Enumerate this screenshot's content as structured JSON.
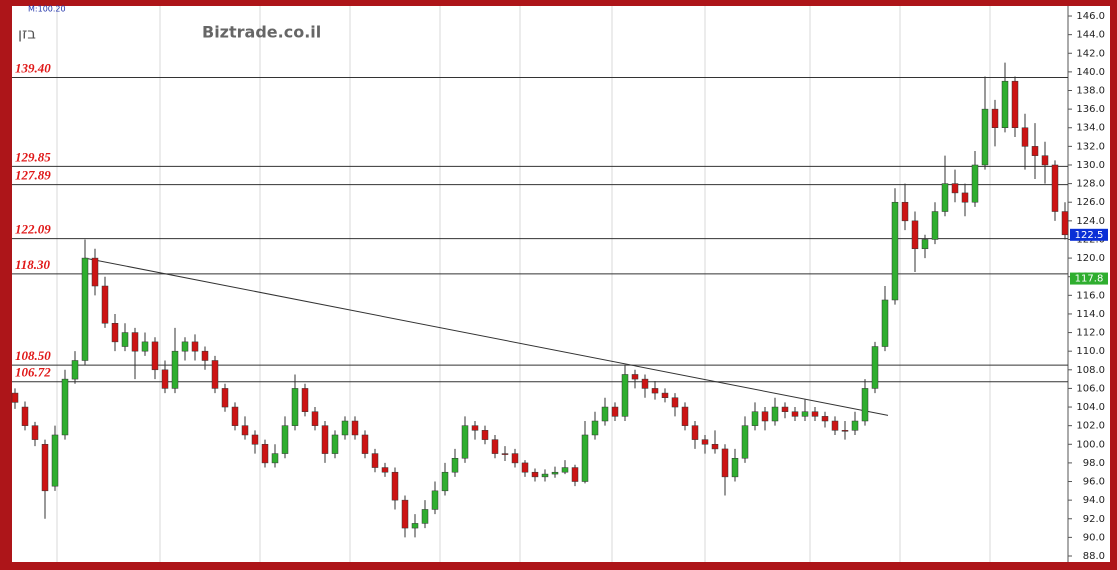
{
  "chart_data": {
    "type": "candlestick",
    "title": "Biztrade.co.il",
    "subtitle": "בזן",
    "annotation": "M:100.20",
    "colors": {
      "up": "#2fae2f",
      "down": "#cc1414"
    },
    "ylim": [
      88,
      146.4
    ],
    "yticks": [
      {
        "value": 88,
        "label": "88.0"
      },
      {
        "value": 90,
        "label": "90.0"
      },
      {
        "value": 92,
        "label": "92.0"
      },
      {
        "value": 94,
        "label": "94.0"
      },
      {
        "value": 96,
        "label": "96.0"
      },
      {
        "value": 98,
        "label": "98.0"
      },
      {
        "value": 100,
        "label": "100.0"
      },
      {
        "value": 102,
        "label": "102.0"
      },
      {
        "value": 104,
        "label": "104.0"
      },
      {
        "value": 106,
        "label": "106.0"
      },
      {
        "value": 108,
        "label": "108.0"
      },
      {
        "value": 110,
        "label": "110.0"
      },
      {
        "value": 112,
        "label": "112.0"
      },
      {
        "value": 114,
        "label": "114.0"
      },
      {
        "value": 116,
        "label": "116.0"
      },
      {
        "value": 118,
        "label": "118.0"
      },
      {
        "value": 120,
        "label": "120.0"
      },
      {
        "value": 122,
        "label": "122.0"
      },
      {
        "value": 124,
        "label": "124.0"
      },
      {
        "value": 126,
        "label": "126.0"
      },
      {
        "value": 128,
        "label": "128.0"
      },
      {
        "value": 130,
        "label": "130.0"
      },
      {
        "value": 132,
        "label": "132.0"
      },
      {
        "value": 134,
        "label": "134.0"
      },
      {
        "value": 136,
        "label": "136.0"
      },
      {
        "value": 138,
        "label": "138.0"
      },
      {
        "value": 140,
        "label": "140.0"
      },
      {
        "value": 142,
        "label": "142.0"
      },
      {
        "value": 144,
        "label": "144.0"
      },
      {
        "value": 146,
        "label": "146.0"
      }
    ],
    "levels": [
      {
        "value": 139.4,
        "label": "139.40"
      },
      {
        "value": 129.85,
        "label": "129.85"
      },
      {
        "value": 127.89,
        "label": "127.89"
      },
      {
        "value": 122.09,
        "label": "122.09"
      },
      {
        "value": 118.3,
        "label": "118.30"
      },
      {
        "value": 108.5,
        "label": "108.50"
      },
      {
        "value": 106.72,
        "label": "106.72"
      }
    ],
    "price_tags": [
      {
        "value": 122.5,
        "label": "122.5",
        "color": "#0a2fd6"
      },
      {
        "value": 117.8,
        "label": "117.8",
        "color": "#2fae2f"
      }
    ],
    "trendline": {
      "x": [
        7,
        87.3
      ],
      "y": [
        120.0,
        103.1
      ]
    },
    "ohlc": [
      [
        105.5,
        106,
        103.8,
        104.5
      ],
      [
        104,
        104.6,
        101.5,
        102
      ],
      [
        102,
        102.4,
        99.8,
        100.5
      ],
      [
        100,
        100.5,
        92,
        95
      ],
      [
        95.5,
        102,
        95,
        101
      ],
      [
        101,
        108,
        100.5,
        107
      ],
      [
        107,
        110,
        106.5,
        109
      ],
      [
        109,
        122,
        108.5,
        120
      ],
      [
        120,
        121,
        116,
        117
      ],
      [
        117,
        118,
        112.5,
        113
      ],
      [
        113,
        114,
        110,
        111
      ],
      [
        110.5,
        113,
        110,
        112
      ],
      [
        112,
        112.5,
        107,
        110
      ],
      [
        110,
        112,
        109.5,
        111
      ],
      [
        111,
        111.5,
        107,
        108
      ],
      [
        108,
        109,
        105.5,
        106
      ],
      [
        106,
        112.5,
        105.5,
        110
      ],
      [
        110,
        111.5,
        109,
        111
      ],
      [
        111,
        111.8,
        109,
        110
      ],
      [
        110,
        110.5,
        108,
        109
      ],
      [
        109,
        109.5,
        105.5,
        106
      ],
      [
        106,
        106.5,
        103.5,
        104
      ],
      [
        104,
        104.5,
        101.5,
        102
      ],
      [
        102,
        103,
        100.5,
        101
      ],
      [
        101,
        101.5,
        99,
        100
      ],
      [
        100,
        100.5,
        97.5,
        98
      ],
      [
        98,
        100,
        97.5,
        99
      ],
      [
        99,
        103,
        98.5,
        102
      ],
      [
        102,
        107.5,
        101.5,
        106
      ],
      [
        106,
        106.5,
        103,
        103.5
      ],
      [
        103.5,
        104,
        101.5,
        102
      ],
      [
        102,
        102.5,
        98,
        99
      ],
      [
        99,
        101.5,
        98.5,
        101
      ],
      [
        101,
        103,
        100.5,
        102.5
      ],
      [
        102.5,
        103,
        100.5,
        101
      ],
      [
        101,
        101.5,
        98.5,
        99
      ],
      [
        99,
        99.5,
        97,
        97.5
      ],
      [
        97.5,
        98,
        96.5,
        97
      ],
      [
        97,
        97.5,
        93,
        94
      ],
      [
        94,
        94.5,
        90,
        91
      ],
      [
        91,
        92.5,
        90,
        91.5
      ],
      [
        91.5,
        94,
        91,
        93
      ],
      [
        93,
        96,
        92.5,
        95
      ],
      [
        95,
        98,
        94.5,
        97
      ],
      [
        97,
        99.5,
        96.5,
        98.5
      ],
      [
        98.5,
        103,
        98,
        102
      ],
      [
        102,
        102.5,
        100.5,
        101.5
      ],
      [
        101.5,
        102,
        100,
        100.5
      ],
      [
        100.5,
        101,
        98.5,
        99
      ],
      [
        99,
        99.8,
        98.2,
        99
      ],
      [
        99,
        99.5,
        97.5,
        98
      ],
      [
        98,
        98.3,
        96.5,
        97
      ],
      [
        97,
        97.4,
        96,
        96.5
      ],
      [
        96.5,
        97.3,
        96,
        96.8
      ],
      [
        96.8,
        97.6,
        96.4,
        97
      ],
      [
        97,
        98.3,
        96.8,
        97.5
      ],
      [
        97.5,
        97.8,
        95.5,
        96
      ],
      [
        96,
        102.5,
        95.8,
        101
      ],
      [
        101,
        103.5,
        100.5,
        102.5
      ],
      [
        102.5,
        105,
        102,
        104
      ],
      [
        104,
        104.5,
        102.5,
        103
      ],
      [
        103,
        108.5,
        102.5,
        107.5
      ],
      [
        107.5,
        108,
        106,
        107
      ],
      [
        107,
        107.5,
        105,
        106
      ],
      [
        106,
        106.8,
        104.8,
        105.5
      ],
      [
        105.5,
        106,
        104.5,
        105
      ],
      [
        105,
        105.5,
        103,
        104
      ],
      [
        104,
        104.5,
        101.5,
        102
      ],
      [
        102,
        102.5,
        99.5,
        100.5
      ],
      [
        100.5,
        101,
        99,
        100
      ],
      [
        100,
        101.5,
        99,
        99.5
      ],
      [
        99.5,
        100,
        94.5,
        96.5
      ],
      [
        96.5,
        99.5,
        96,
        98.5
      ],
      [
        98.5,
        103,
        98,
        102
      ],
      [
        102,
        104.5,
        101.5,
        103.5
      ],
      [
        103.5,
        104,
        101.5,
        102.5
      ],
      [
        102.5,
        105,
        102,
        104
      ],
      [
        104,
        104.5,
        102.8,
        103.5
      ],
      [
        103.5,
        104,
        102.5,
        103
      ],
      [
        103,
        104.8,
        102.5,
        103.5
      ],
      [
        103.5,
        104,
        102.5,
        103
      ],
      [
        103,
        103.5,
        101.8,
        102.5
      ],
      [
        102.5,
        103,
        101,
        101.5
      ],
      [
        101.5,
        102.5,
        100.5,
        101.5
      ],
      [
        101.5,
        103.5,
        101,
        102.5
      ],
      [
        102.5,
        107,
        102,
        106
      ],
      [
        106,
        111,
        105.5,
        110.5
      ],
      [
        110.5,
        117,
        110,
        115.5
      ],
      [
        115.5,
        127.5,
        115,
        126
      ],
      [
        126,
        128,
        123,
        124
      ],
      [
        124,
        125,
        118.5,
        121
      ],
      [
        121,
        122.5,
        120,
        122
      ],
      [
        122,
        126,
        121.5,
        125
      ],
      [
        125,
        131,
        124.5,
        128
      ],
      [
        128,
        129.5,
        126,
        127
      ],
      [
        127,
        128,
        124.5,
        126
      ],
      [
        126,
        131.5,
        125.5,
        130
      ],
      [
        130,
        139.5,
        129.5,
        136
      ],
      [
        136,
        137,
        132,
        134
      ],
      [
        134,
        141,
        133.5,
        139
      ],
      [
        139,
        139.5,
        133,
        134
      ],
      [
        134,
        135.5,
        129.5,
        132
      ],
      [
        132,
        134.5,
        128.5,
        131
      ],
      [
        131,
        132.5,
        128,
        130
      ],
      [
        130,
        130.5,
        124,
        125
      ],
      [
        125,
        126,
        122,
        122.5
      ]
    ]
  }
}
